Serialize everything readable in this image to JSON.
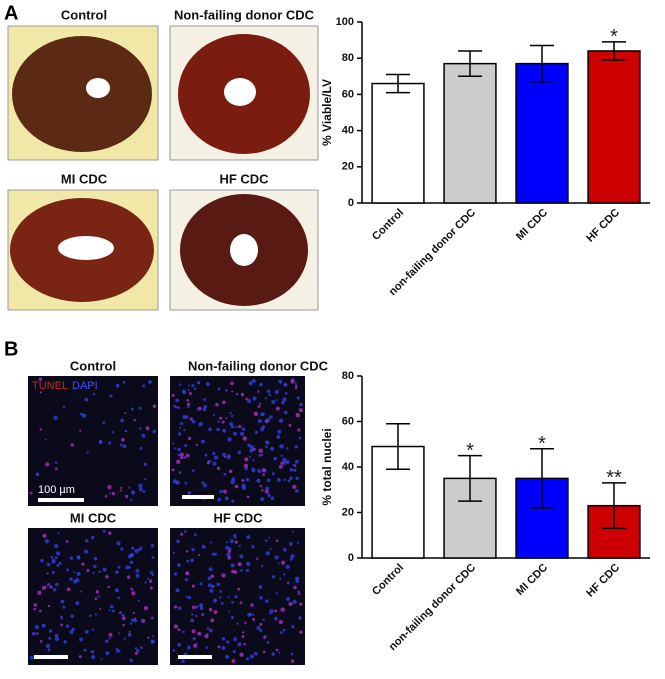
{
  "panel_labels": [
    "A",
    "B"
  ],
  "panel_a_images": [
    "Control",
    "Non-failing donor CDC",
    "MI CDC",
    "HF CDC"
  ],
  "panel_b_images": [
    "Control",
    "Non-failing donor CDC",
    "MI CDC",
    "HF CDC"
  ],
  "stain_legend": [
    "TUNEL",
    "DAPI"
  ],
  "scale_bar": "100 µm",
  "chart_data": [
    {
      "type": "bar",
      "ylabel": "% Viable/LV",
      "categories": [
        "Control",
        "non-failing donor CDC",
        "MI CDC",
        "HF CDC"
      ],
      "values": [
        66,
        77,
        77,
        84
      ],
      "errors": [
        5,
        7,
        10,
        5
      ],
      "colors": [
        "#ffffff",
        "#cccccc",
        "#0000ff",
        "#cc0000"
      ],
      "significance": [
        null,
        null,
        null,
        "*"
      ],
      "ylim": [
        0,
        100
      ],
      "yticks": [
        0,
        20,
        40,
        60,
        80,
        100
      ]
    },
    {
      "type": "bar",
      "ylabel": "% total nuclei",
      "categories": [
        "Control",
        "non-failing donor CDC",
        "MI CDC",
        "HF CDC"
      ],
      "values": [
        49,
        35,
        35,
        23
      ],
      "errors": [
        10,
        10,
        13,
        10
      ],
      "colors": [
        "#ffffff",
        "#cccccc",
        "#0000ff",
        "#cc0000"
      ],
      "significance": [
        null,
        "*",
        "*",
        "**"
      ],
      "ylim": [
        0,
        80
      ],
      "yticks": [
        0,
        20,
        40,
        60,
        80
      ]
    }
  ]
}
